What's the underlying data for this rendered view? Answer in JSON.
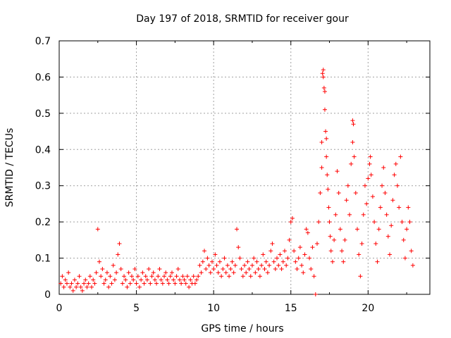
{
  "chart_data": {
    "type": "scatter",
    "title": "Day 197 of 2018, SRMTID for receiver gour",
    "xlabel": "GPS time / hours",
    "ylabel": "SRMTID / TECUs",
    "xlim": [
      0,
      24
    ],
    "ylim": [
      0,
      0.7
    ],
    "xticks": [
      0,
      5,
      10,
      15,
      20
    ],
    "yticks": [
      0,
      0.1,
      0.2,
      0.3,
      0.4,
      0.5,
      0.6,
      0.7
    ],
    "xtick_labels": [
      "0",
      "5",
      "10",
      "15",
      "20"
    ],
    "ytick_labels": [
      "0",
      "0.1",
      "0.2",
      "0.3",
      "0.4",
      "0.5",
      "0.6",
      "0.7"
    ],
    "grid": true,
    "marker": "plus",
    "color": "#ff0000",
    "series": [
      {
        "name": "SRMTID",
        "points": [
          [
            0.1,
            0.03
          ],
          [
            0.2,
            0.05
          ],
          [
            0.3,
            0.02
          ],
          [
            0.4,
            0.04
          ],
          [
            0.5,
            0.03
          ],
          [
            0.6,
            0.06
          ],
          [
            0.7,
            0.02
          ],
          [
            0.8,
            0.03
          ],
          [
            0.9,
            0.01
          ],
          [
            1.0,
            0.04
          ],
          [
            1.1,
            0.02
          ],
          [
            1.2,
            0.03
          ],
          [
            1.3,
            0.05
          ],
          [
            1.4,
            0.02
          ],
          [
            1.5,
            0.01
          ],
          [
            1.6,
            0.03
          ],
          [
            1.7,
            0.04
          ],
          [
            1.8,
            0.02
          ],
          [
            1.9,
            0.03
          ],
          [
            2.0,
            0.05
          ],
          [
            2.1,
            0.02
          ],
          [
            2.2,
            0.04
          ],
          [
            2.3,
            0.03
          ],
          [
            2.4,
            0.06
          ],
          [
            2.5,
            0.18
          ],
          [
            2.6,
            0.09
          ],
          [
            2.7,
            0.05
          ],
          [
            2.8,
            0.07
          ],
          [
            2.9,
            0.03
          ],
          [
            3.0,
            0.04
          ],
          [
            3.1,
            0.06
          ],
          [
            3.2,
            0.02
          ],
          [
            3.3,
            0.05
          ],
          [
            3.4,
            0.03
          ],
          [
            3.5,
            0.08
          ],
          [
            3.6,
            0.04
          ],
          [
            3.7,
            0.06
          ],
          [
            3.8,
            0.11
          ],
          [
            3.9,
            0.14
          ],
          [
            4.0,
            0.07
          ],
          [
            4.1,
            0.03
          ],
          [
            4.2,
            0.05
          ],
          [
            4.3,
            0.04
          ],
          [
            4.4,
            0.02
          ],
          [
            4.5,
            0.06
          ],
          [
            4.6,
            0.03
          ],
          [
            4.7,
            0.05
          ],
          [
            4.8,
            0.04
          ],
          [
            4.9,
            0.07
          ],
          [
            5.0,
            0.03
          ],
          [
            5.1,
            0.05
          ],
          [
            5.2,
            0.02
          ],
          [
            5.3,
            0.04
          ],
          [
            5.4,
            0.06
          ],
          [
            5.5,
            0.03
          ],
          [
            5.6,
            0.05
          ],
          [
            5.7,
            0.04
          ],
          [
            5.8,
            0.07
          ],
          [
            5.9,
            0.03
          ],
          [
            6.0,
            0.05
          ],
          [
            6.1,
            0.06
          ],
          [
            6.2,
            0.04
          ],
          [
            6.3,
            0.03
          ],
          [
            6.4,
            0.05
          ],
          [
            6.5,
            0.07
          ],
          [
            6.6,
            0.04
          ],
          [
            6.7,
            0.03
          ],
          [
            6.8,
            0.05
          ],
          [
            6.9,
            0.06
          ],
          [
            7.0,
            0.04
          ],
          [
            7.1,
            0.03
          ],
          [
            7.2,
            0.05
          ],
          [
            7.3,
            0.06
          ],
          [
            7.4,
            0.04
          ],
          [
            7.5,
            0.03
          ],
          [
            7.6,
            0.05
          ],
          [
            7.7,
            0.07
          ],
          [
            7.8,
            0.04
          ],
          [
            7.9,
            0.03
          ],
          [
            8.0,
            0.05
          ],
          [
            8.1,
            0.04
          ],
          [
            8.2,
            0.03
          ],
          [
            8.3,
            0.05
          ],
          [
            8.4,
            0.02
          ],
          [
            8.5,
            0.04
          ],
          [
            8.6,
            0.03
          ],
          [
            8.7,
            0.05
          ],
          [
            8.8,
            0.03
          ],
          [
            8.9,
            0.04
          ],
          [
            9.0,
            0.05
          ],
          [
            9.1,
            0.08
          ],
          [
            9.2,
            0.06
          ],
          [
            9.3,
            0.09
          ],
          [
            9.4,
            0.12
          ],
          [
            9.5,
            0.07
          ],
          [
            9.6,
            0.1
          ],
          [
            9.7,
            0.08
          ],
          [
            9.8,
            0.06
          ],
          [
            9.9,
            0.09
          ],
          [
            10.0,
            0.07
          ],
          [
            10.1,
            0.11
          ],
          [
            10.2,
            0.08
          ],
          [
            10.3,
            0.06
          ],
          [
            10.4,
            0.09
          ],
          [
            10.5,
            0.05
          ],
          [
            10.6,
            0.07
          ],
          [
            10.7,
            0.1
          ],
          [
            10.8,
            0.06
          ],
          [
            10.9,
            0.08
          ],
          [
            11.0,
            0.05
          ],
          [
            11.1,
            0.07
          ],
          [
            11.2,
            0.09
          ],
          [
            11.3,
            0.06
          ],
          [
            11.4,
            0.08
          ],
          [
            11.5,
            0.18
          ],
          [
            11.6,
            0.13
          ],
          [
            11.7,
            0.1
          ],
          [
            11.8,
            0.07
          ],
          [
            11.9,
            0.05
          ],
          [
            12.0,
            0.08
          ],
          [
            12.1,
            0.06
          ],
          [
            12.2,
            0.09
          ],
          [
            12.3,
            0.07
          ],
          [
            12.4,
            0.05
          ],
          [
            12.5,
            0.08
          ],
          [
            12.6,
            0.1
          ],
          [
            12.7,
            0.06
          ],
          [
            12.8,
            0.09
          ],
          [
            12.9,
            0.07
          ],
          [
            13.0,
            0.05
          ],
          [
            13.1,
            0.08
          ],
          [
            13.2,
            0.11
          ],
          [
            13.3,
            0.07
          ],
          [
            13.4,
            0.09
          ],
          [
            13.5,
            0.06
          ],
          [
            13.6,
            0.08
          ],
          [
            13.7,
            0.12
          ],
          [
            13.8,
            0.14
          ],
          [
            13.9,
            0.09
          ],
          [
            14.0,
            0.07
          ],
          [
            14.1,
            0.1
          ],
          [
            14.2,
            0.08
          ],
          [
            14.3,
            0.11
          ],
          [
            14.4,
            0.07
          ],
          [
            14.5,
            0.09
          ],
          [
            14.6,
            0.12
          ],
          [
            14.7,
            0.08
          ],
          [
            14.8,
            0.1
          ],
          [
            14.9,
            0.15
          ],
          [
            15.0,
            0.2
          ],
          [
            15.1,
            0.21
          ],
          [
            15.2,
            0.12
          ],
          [
            15.3,
            0.09
          ],
          [
            15.4,
            0.07
          ],
          [
            15.5,
            0.1
          ],
          [
            15.6,
            0.13
          ],
          [
            15.7,
            0.08
          ],
          [
            15.8,
            0.06
          ],
          [
            15.9,
            0.11
          ],
          [
            16.0,
            0.18
          ],
          [
            16.1,
            0.17
          ],
          [
            16.2,
            0.1
          ],
          [
            16.3,
            0.07
          ],
          [
            16.4,
            0.13
          ],
          [
            16.5,
            0.05
          ],
          [
            16.6,
            0.0
          ],
          [
            16.7,
            0.14
          ],
          [
            16.8,
            0.2
          ],
          [
            16.9,
            0.28
          ],
          [
            17.0,
            0.35
          ],
          [
            17.0,
            0.42
          ],
          [
            17.05,
            0.61
          ],
          [
            17.1,
            0.62
          ],
          [
            17.1,
            0.6
          ],
          [
            17.15,
            0.57
          ],
          [
            17.2,
            0.56
          ],
          [
            17.2,
            0.51
          ],
          [
            17.25,
            0.45
          ],
          [
            17.3,
            0.43
          ],
          [
            17.3,
            0.38
          ],
          [
            17.35,
            0.33
          ],
          [
            17.4,
            0.29
          ],
          [
            17.45,
            0.24
          ],
          [
            17.5,
            0.2
          ],
          [
            17.55,
            0.16
          ],
          [
            17.6,
            0.12
          ],
          [
            17.7,
            0.09
          ],
          [
            17.8,
            0.15
          ],
          [
            17.9,
            0.22
          ],
          [
            18.0,
            0.34
          ],
          [
            18.1,
            0.28
          ],
          [
            18.2,
            0.18
          ],
          [
            18.3,
            0.12
          ],
          [
            18.4,
            0.09
          ],
          [
            18.5,
            0.15
          ],
          [
            18.6,
            0.26
          ],
          [
            18.7,
            0.3
          ],
          [
            18.8,
            0.22
          ],
          [
            18.9,
            0.36
          ],
          [
            19.0,
            0.48
          ],
          [
            19.0,
            0.42
          ],
          [
            19.05,
            0.47
          ],
          [
            19.1,
            0.38
          ],
          [
            19.2,
            0.28
          ],
          [
            19.3,
            0.18
          ],
          [
            19.4,
            0.11
          ],
          [
            19.5,
            0.05
          ],
          [
            19.6,
            0.14
          ],
          [
            19.7,
            0.22
          ],
          [
            19.8,
            0.3
          ],
          [
            19.9,
            0.25
          ],
          [
            20.0,
            0.32
          ],
          [
            20.1,
            0.36
          ],
          [
            20.15,
            0.38
          ],
          [
            20.2,
            0.33
          ],
          [
            20.3,
            0.27
          ],
          [
            20.4,
            0.2
          ],
          [
            20.5,
            0.14
          ],
          [
            20.6,
            0.09
          ],
          [
            20.7,
            0.18
          ],
          [
            20.8,
            0.24
          ],
          [
            20.9,
            0.3
          ],
          [
            21.0,
            0.35
          ],
          [
            21.1,
            0.28
          ],
          [
            21.2,
            0.22
          ],
          [
            21.3,
            0.16
          ],
          [
            21.4,
            0.11
          ],
          [
            21.5,
            0.19
          ],
          [
            21.6,
            0.26
          ],
          [
            21.7,
            0.33
          ],
          [
            21.8,
            0.36
          ],
          [
            21.9,
            0.3
          ],
          [
            22.0,
            0.24
          ],
          [
            22.1,
            0.38
          ],
          [
            22.2,
            0.2
          ],
          [
            22.3,
            0.15
          ],
          [
            22.4,
            0.1
          ],
          [
            22.5,
            0.18
          ],
          [
            22.6,
            0.24
          ],
          [
            22.7,
            0.2
          ],
          [
            22.8,
            0.12
          ],
          [
            22.9,
            0.08
          ]
        ]
      }
    ]
  }
}
